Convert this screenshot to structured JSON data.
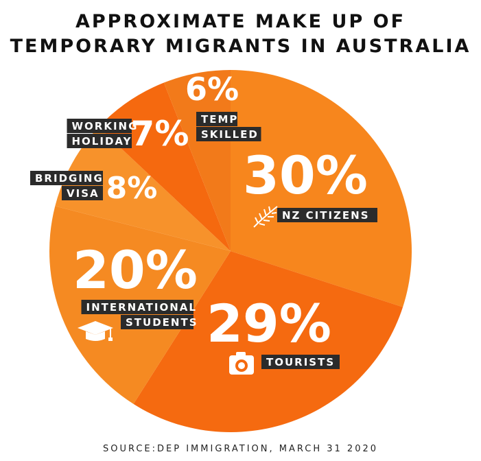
{
  "chart_data": {
    "type": "pie",
    "title_lines": [
      "APPROXIMATE MAKE UP OF",
      "TEMPORARY MIGRANTS IN AUSTRALIA"
    ],
    "source": "SOURCE:DEP IMMIGRATION, MARCH 31 2020",
    "slices": [
      {
        "key": "nz",
        "percent_label": "30%",
        "value": 30,
        "label_lines": [
          "NZ CITIZENS"
        ],
        "color": "#f7861d",
        "icon": "fern-icon"
      },
      {
        "key": "tourists",
        "percent_label": "29%",
        "value": 29,
        "label_lines": [
          "TOURISTS"
        ],
        "color": "#f56a10",
        "icon": "camera-icon"
      },
      {
        "key": "students",
        "percent_label": "20%",
        "value": 20,
        "label_lines": [
          "INTERNATIONAL",
          "STUDENTS"
        ],
        "color": "#f58a22",
        "icon": "graduation-cap-icon"
      },
      {
        "key": "bridging",
        "percent_label": "8%",
        "value": 8,
        "label_lines": [
          "BRIDGING",
          "VISA"
        ],
        "color": "#f7922b",
        "icon": ""
      },
      {
        "key": "working",
        "percent_label": "7%",
        "value": 7,
        "label_lines": [
          "WORKING",
          "HOLIDAY"
        ],
        "color": "#f5690f",
        "icon": ""
      },
      {
        "key": "temp",
        "percent_label": "6%",
        "value": 6,
        "label_lines": [
          "TEMP",
          "SKILLED"
        ],
        "color": "#f27a1a",
        "icon": ""
      }
    ]
  }
}
